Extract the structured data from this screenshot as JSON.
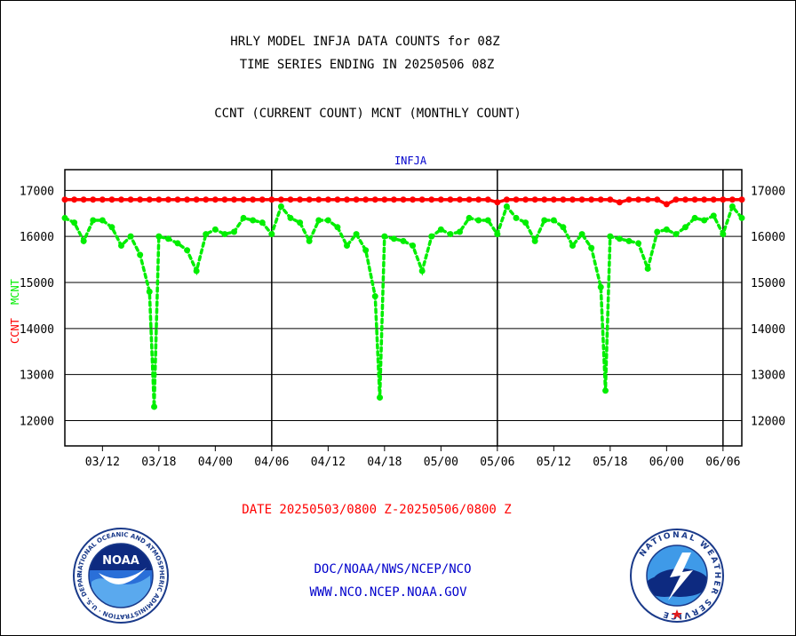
{
  "header": {
    "title_line1": "HRLY MODEL INFJA DATA COUNTS for 08Z",
    "title_line2": "TIME SERIES ENDING IN 20250506 08Z",
    "subtitle": "CCNT (CURRENT COUNT) MCNT (MONTHLY COUNT)"
  },
  "footer": {
    "date_range": "DATE 20250503/0800 Z-20250506/0800 Z",
    "agency_path": "DOC/NOAA/NWS/NCEP/NCO",
    "website": "WWW.NCO.NCEP.NOAA.GOV"
  },
  "logos": {
    "noaa_wordmark": "NOAA",
    "noaa_ring": "NATIONAL OCEANIC AND ATMOSPHERIC ADMINISTRATION · U.S. DEPARTMENT OF COMMERCE",
    "nws_ring": "NATIONAL WEATHER SERVICE"
  },
  "colors": {
    "ccnt": "#ff0000",
    "mcnt": "#00ee00",
    "plot_label": "#0000cc",
    "date_text": "#ff0000",
    "footer_text": "#0000cc"
  },
  "chart_data": {
    "type": "line",
    "plot_label": "INFJA",
    "ylabel_ccnt": "CCNT",
    "ylabel_mcnt": "MCNT",
    "ylim": [
      11450,
      17450
    ],
    "yticks": [
      12000,
      13000,
      14000,
      15000,
      16000,
      17000
    ],
    "grid": true,
    "x_range": [
      0,
      3.0
    ],
    "xticks": [
      {
        "x": 0.1667,
        "label": "03/12"
      },
      {
        "x": 0.4167,
        "label": "03/18"
      },
      {
        "x": 0.6667,
        "label": "04/00"
      },
      {
        "x": 0.9167,
        "label": "04/06"
      },
      {
        "x": 1.1667,
        "label": "04/12"
      },
      {
        "x": 1.4167,
        "label": "04/18"
      },
      {
        "x": 1.6667,
        "label": "05/00"
      },
      {
        "x": 1.9167,
        "label": "05/06"
      },
      {
        "x": 2.1667,
        "label": "05/12"
      },
      {
        "x": 2.4167,
        "label": "05/18"
      },
      {
        "x": 2.6667,
        "label": "06/00"
      },
      {
        "x": 2.9167,
        "label": "06/06"
      }
    ],
    "day_dividers": [
      0.9167,
      1.9167,
      2.9167
    ],
    "series": [
      {
        "name": "CCNT",
        "color": "#ff0000",
        "x": [
          0.0,
          0.0417,
          0.0833,
          0.125,
          0.1667,
          0.2083,
          0.25,
          0.2917,
          0.3333,
          0.375,
          0.4167,
          0.4583,
          0.5,
          0.5417,
          0.5833,
          0.625,
          0.6667,
          0.7083,
          0.75,
          0.7917,
          0.8333,
          0.875,
          0.9167,
          0.9583,
          1.0,
          1.0417,
          1.0833,
          1.125,
          1.1667,
          1.2083,
          1.25,
          1.2917,
          1.3333,
          1.375,
          1.4167,
          1.4583,
          1.5,
          1.5417,
          1.5833,
          1.625,
          1.6667,
          1.7083,
          1.75,
          1.7917,
          1.8333,
          1.875,
          1.9167,
          1.9583,
          2.0,
          2.0417,
          2.0833,
          2.125,
          2.1667,
          2.2083,
          2.25,
          2.2917,
          2.3333,
          2.375,
          2.4167,
          2.4583,
          2.5,
          2.5417,
          2.5833,
          2.625,
          2.6667,
          2.7083,
          2.75,
          2.7917,
          2.8333,
          2.875,
          2.9167,
          2.9583,
          3.0
        ],
        "values": [
          16800,
          16800,
          16800,
          16800,
          16800,
          16800,
          16800,
          16800,
          16800,
          16800,
          16800,
          16800,
          16800,
          16800,
          16800,
          16800,
          16800,
          16800,
          16800,
          16800,
          16800,
          16800,
          16800,
          16800,
          16800,
          16800,
          16800,
          16800,
          16800,
          16800,
          16800,
          16800,
          16800,
          16800,
          16800,
          16800,
          16800,
          16800,
          16800,
          16800,
          16800,
          16800,
          16800,
          16800,
          16800,
          16800,
          16740,
          16800,
          16800,
          16800,
          16800,
          16800,
          16800,
          16800,
          16800,
          16800,
          16800,
          16800,
          16800,
          16740,
          16800,
          16800,
          16800,
          16800,
          16700,
          16800,
          16800,
          16800,
          16800,
          16800,
          16800,
          16800,
          16800
        ]
      },
      {
        "name": "MCNT",
        "color": "#00ee00",
        "x": [
          0.0,
          0.0417,
          0.0833,
          0.125,
          0.1667,
          0.2083,
          0.25,
          0.2917,
          0.3333,
          0.375,
          0.3958,
          0.4167,
          0.4583,
          0.5,
          0.5417,
          0.5833,
          0.625,
          0.6667,
          0.7083,
          0.75,
          0.7917,
          0.8333,
          0.875,
          0.9167,
          0.9583,
          1.0,
          1.0417,
          1.0833,
          1.125,
          1.1667,
          1.2083,
          1.25,
          1.2917,
          1.3333,
          1.375,
          1.3958,
          1.4167,
          1.4583,
          1.5,
          1.5417,
          1.5833,
          1.625,
          1.6667,
          1.7083,
          1.75,
          1.7917,
          1.8333,
          1.875,
          1.9167,
          1.9583,
          2.0,
          2.0417,
          2.0833,
          2.125,
          2.1667,
          2.2083,
          2.25,
          2.2917,
          2.3333,
          2.375,
          2.3958,
          2.4167,
          2.4583,
          2.5,
          2.5417,
          2.5833,
          2.625,
          2.6667,
          2.7083,
          2.75,
          2.7917,
          2.8333,
          2.875,
          2.9167,
          2.9583,
          3.0
        ],
        "values": [
          16400,
          16300,
          15900,
          16350,
          16350,
          16200,
          15800,
          16000,
          15600,
          14800,
          12300,
          16000,
          15950,
          15850,
          15700,
          15250,
          16050,
          16150,
          16050,
          16100,
          16400,
          16350,
          16300,
          16050,
          16650,
          16400,
          16300,
          15900,
          16350,
          16350,
          16200,
          15800,
          16050,
          15700,
          14700,
          12500,
          16000,
          15950,
          15900,
          15800,
          15250,
          16000,
          16150,
          16050,
          16100,
          16400,
          16350,
          16350,
          16050,
          16650,
          16400,
          16300,
          15900,
          16350,
          16350,
          16200,
          15800,
          16050,
          15750,
          14900,
          12650,
          16000,
          15950,
          15900,
          15850,
          15300,
          16100,
          16150,
          16050,
          16200,
          16400,
          16350,
          16450,
          16050,
          16650,
          16400
        ]
      }
    ]
  }
}
